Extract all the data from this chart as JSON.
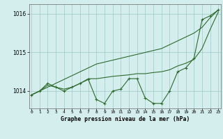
{
  "title": "Graphe pression niveau de la mer (hPa)",
  "hours": [
    0,
    1,
    2,
    3,
    4,
    5,
    6,
    7,
    8,
    9,
    10,
    11,
    12,
    13,
    14,
    15,
    16,
    17,
    18,
    19,
    20,
    21,
    22,
    23
  ],
  "line_straight": [
    1013.9,
    1014.0,
    1014.1,
    1014.2,
    1014.3,
    1014.4,
    1014.5,
    1014.6,
    1014.7,
    1014.75,
    1014.8,
    1014.85,
    1014.9,
    1014.95,
    1015.0,
    1015.05,
    1015.1,
    1015.2,
    1015.3,
    1015.4,
    1015.5,
    1015.65,
    1015.9,
    1016.1
  ],
  "line_smooth": [
    1013.9,
    1014.0,
    1014.15,
    1014.1,
    1014.05,
    1014.1,
    1014.2,
    1014.32,
    1014.32,
    1014.35,
    1014.38,
    1014.4,
    1014.42,
    1014.45,
    1014.45,
    1014.48,
    1014.5,
    1014.55,
    1014.65,
    1014.72,
    1014.82,
    1015.1,
    1015.6,
    1016.05
  ],
  "line_jagged": [
    1013.9,
    1014.0,
    1014.2,
    1014.1,
    1014.0,
    1014.1,
    1014.2,
    1014.3,
    1013.78,
    1013.68,
    1014.0,
    1014.05,
    1014.32,
    1014.32,
    1013.82,
    1013.68,
    1013.68,
    1014.0,
    1014.5,
    1014.6,
    1014.85,
    1015.85,
    1015.95,
    1016.1
  ],
  "line_color": "#2d6a2d",
  "bg_color": "#d4eeed",
  "grid_color": "#a0c8c8",
  "ylim": [
    1013.55,
    1016.25
  ],
  "yticks": [
    1014,
    1015,
    1016
  ],
  "marker": "+",
  "markersize": 3,
  "linewidth": 0.8
}
